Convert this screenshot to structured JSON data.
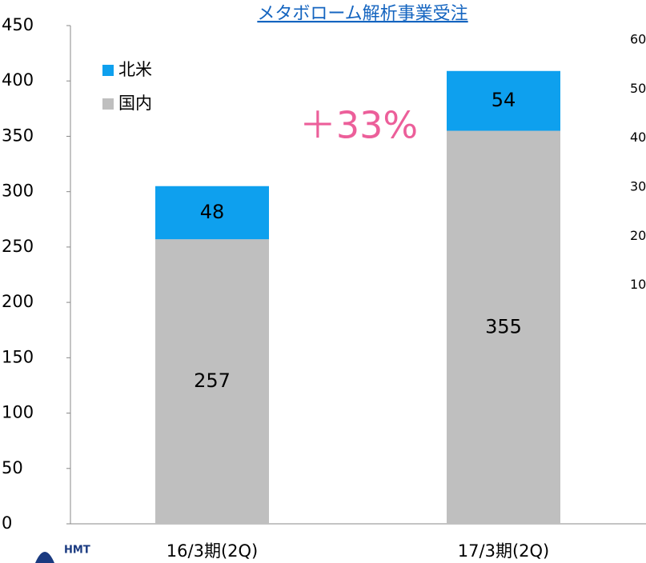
{
  "chart_data": {
    "type": "bar",
    "stacked": true,
    "title": "メタボローム解析事業受注",
    "annotation": "＋33%",
    "logo": "HMT",
    "categories": [
      "16/3期(2Q)",
      "17/3期(2Q)"
    ],
    "series": [
      {
        "name": "国内",
        "color": "#bfbfbf",
        "values": [
          257,
          355
        ]
      },
      {
        "name": "北米",
        "color": "#0ea0ee",
        "values": [
          48,
          54
        ]
      }
    ],
    "ylim": [
      0,
      450
    ],
    "yticks": [
      0,
      50,
      100,
      150,
      200,
      250,
      300,
      350,
      400,
      450
    ],
    "y2lim": [
      0,
      60
    ],
    "y2ticks": [
      10,
      20,
      30,
      40,
      50,
      60
    ],
    "legend": "upper left"
  }
}
